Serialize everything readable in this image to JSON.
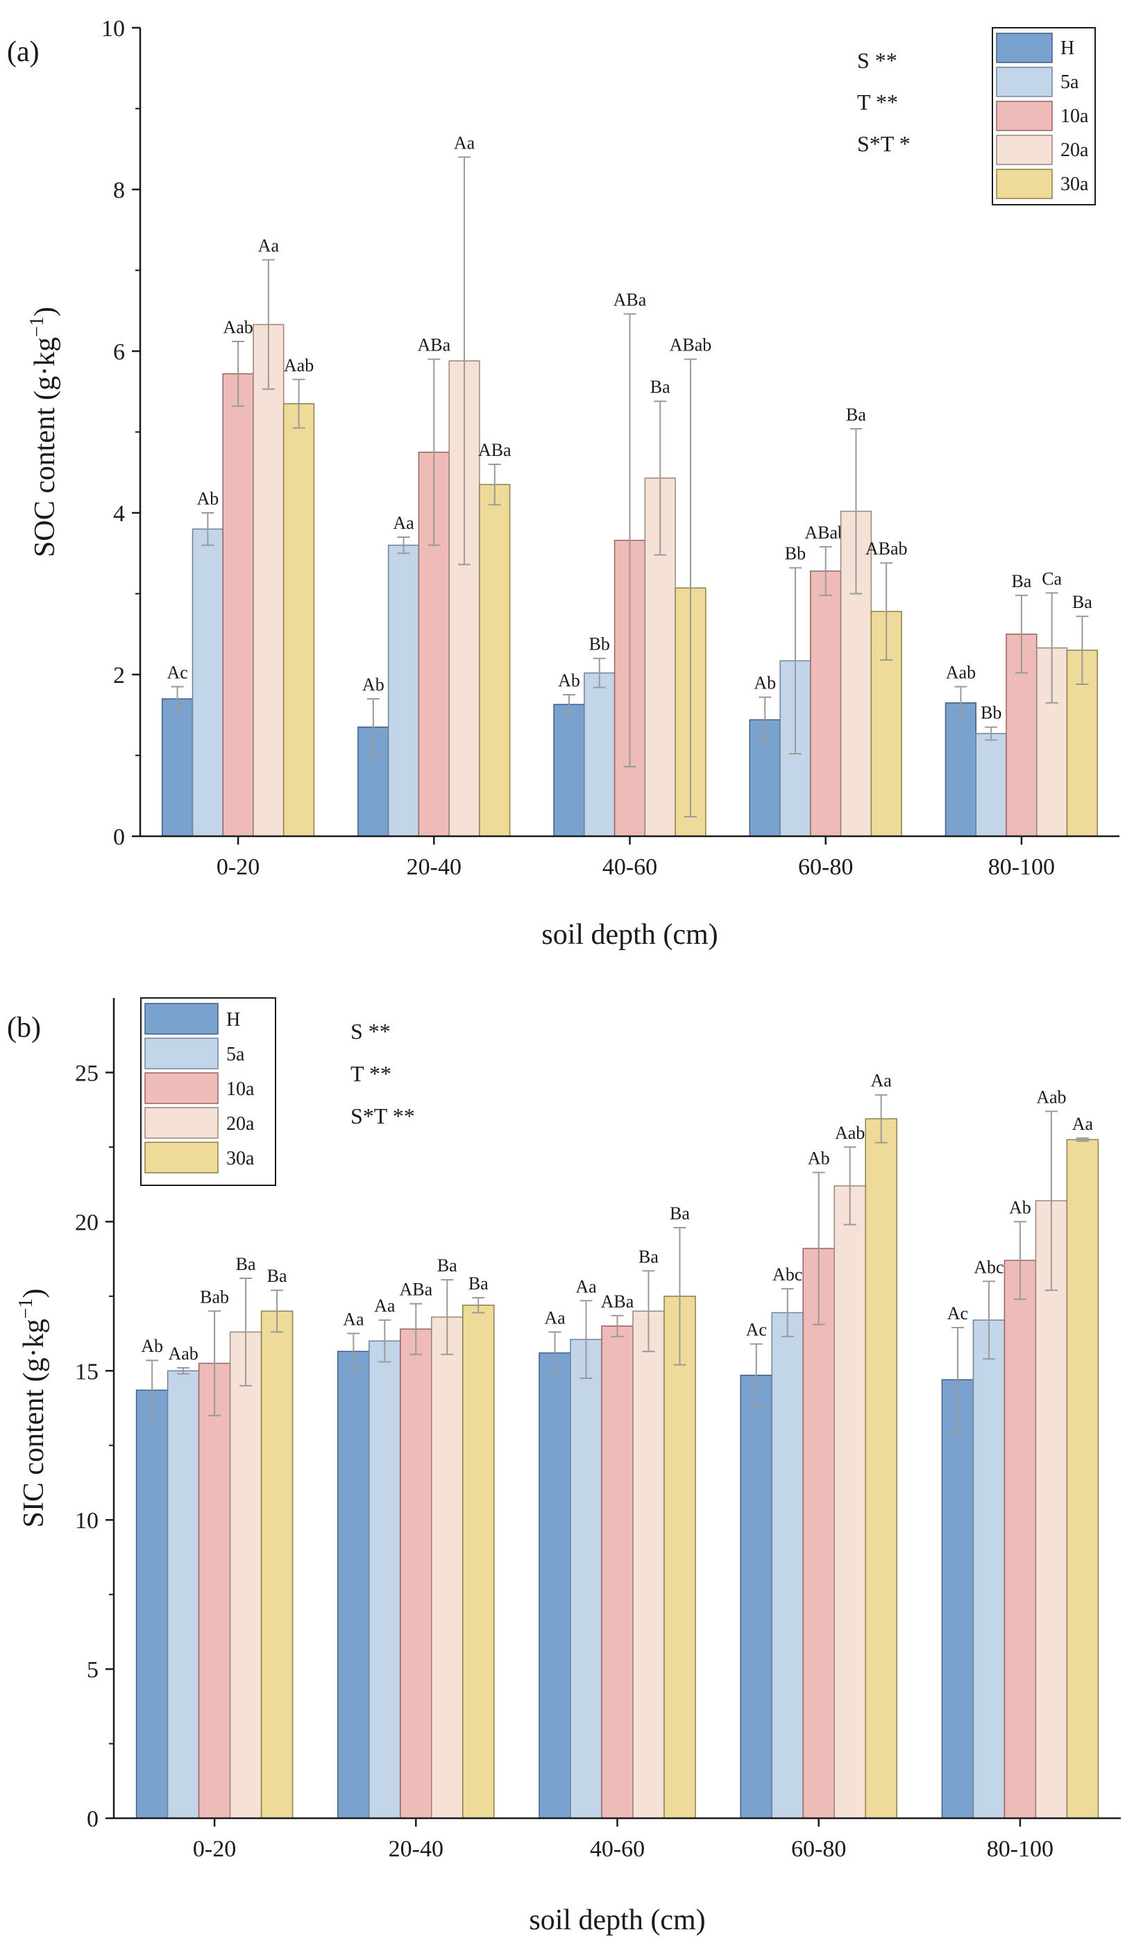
{
  "chart_data": [
    {
      "type": "bar",
      "panel": "(a)",
      "categories": [
        "0-20",
        "20-40",
        "40-60",
        "60-80",
        "80-100"
      ],
      "xlabel": "soil depth (cm)",
      "ylabel": "SOC content (g·kg",
      "ylabel_sup": "−1",
      "ylabel_close": ")",
      "ylim": [
        0,
        10
      ],
      "yticks": [
        "0",
        "2",
        "4",
        "6",
        "8",
        "10"
      ],
      "legend_position": "top-right",
      "significance": [
        "S **",
        "T **",
        "S*T *"
      ],
      "series": [
        {
          "name": "H",
          "values": [
            1.7,
            1.35,
            1.63,
            1.44,
            1.65
          ],
          "errors": [
            0.15,
            0.35,
            0.12,
            0.28,
            0.2
          ],
          "labels": [
            "Ac",
            "Ab",
            "Ab",
            "Ab",
            "Aab"
          ]
        },
        {
          "name": "5a",
          "values": [
            3.8,
            3.6,
            2.02,
            2.17,
            1.27
          ],
          "errors": [
            0.2,
            0.1,
            0.18,
            1.15,
            0.08
          ],
          "labels": [
            "Ab",
            "Aa",
            "Bb",
            "Bb",
            "Bb"
          ]
        },
        {
          "name": "10a",
          "values": [
            5.72,
            4.75,
            3.66,
            3.28,
            2.5
          ],
          "errors": [
            0.4,
            1.15,
            2.8,
            0.3,
            0.48
          ],
          "labels": [
            "Aab",
            "ABa",
            "ABa",
            "ABab",
            "Ba"
          ]
        },
        {
          "name": "20a",
          "values": [
            6.33,
            5.88,
            4.43,
            4.02,
            2.33
          ],
          "errors": [
            0.8,
            2.52,
            0.95,
            1.02,
            0.68
          ],
          "labels": [
            "Aa",
            "Aa",
            "Ba",
            "Ba",
            "Ca"
          ]
        },
        {
          "name": "30a",
          "values": [
            5.35,
            4.35,
            3.07,
            2.78,
            2.3
          ],
          "errors": [
            0.3,
            0.25,
            2.83,
            0.6,
            0.42
          ],
          "labels": [
            "Aab",
            "ABa",
            "ABab",
            "ABab",
            "Ba"
          ]
        }
      ]
    },
    {
      "type": "bar",
      "panel": "(b)",
      "categories": [
        "0-20",
        "20-40",
        "40-60",
        "60-80",
        "80-100"
      ],
      "xlabel": "soil depth (cm)",
      "ylabel": "SIC content (g·kg",
      "ylabel_sup": "−1",
      "ylabel_close": ")",
      "ylim": [
        0,
        27.5
      ],
      "yticks": [
        "0",
        "5",
        "10",
        "15",
        "20",
        "25"
      ],
      "legend_position": "top-left",
      "significance": [
        "S **",
        "T **",
        "S*T **"
      ],
      "series": [
        {
          "name": "H",
          "values": [
            14.35,
            15.65,
            15.6,
            14.85,
            14.7
          ],
          "errors": [
            1.0,
            0.6,
            0.7,
            1.05,
            1.75
          ],
          "labels": [
            "Ab",
            "Aa",
            "Aa",
            "Ac",
            "Ac"
          ]
        },
        {
          "name": "5a",
          "values": [
            15.0,
            16.0,
            16.05,
            16.95,
            16.7
          ],
          "errors": [
            0.1,
            0.7,
            1.3,
            0.8,
            1.3
          ],
          "labels": [
            "Aab",
            "Aa",
            "Aa",
            "Abc",
            "Abc"
          ]
        },
        {
          "name": "10a",
          "values": [
            15.25,
            16.4,
            16.5,
            19.1,
            18.7
          ],
          "errors": [
            1.75,
            0.85,
            0.35,
            2.55,
            1.3
          ],
          "labels": [
            "Bab",
            "ABa",
            "ABa",
            "Ab",
            "Ab"
          ]
        },
        {
          "name": "20a",
          "values": [
            16.3,
            16.8,
            17.0,
            21.2,
            20.7
          ],
          "errors": [
            1.8,
            1.25,
            1.35,
            1.3,
            3.0
          ],
          "labels": [
            "Ba",
            "Ba",
            "Ba",
            "Aab",
            "Aab"
          ]
        },
        {
          "name": "30a",
          "values": [
            17.0,
            17.2,
            17.5,
            23.45,
            22.75
          ],
          "errors": [
            0.7,
            0.25,
            2.3,
            0.8,
            0.05
          ],
          "labels": [
            "Ba",
            "Ba",
            "Ba",
            "Aa",
            "Aa"
          ]
        }
      ]
    }
  ],
  "colors": {
    "series_fill": [
      "#7aa2cf",
      "#c3d5e8",
      "#eebbb8",
      "#f5e1d6",
      "#eedb9a"
    ],
    "series_stroke": [
      "#3e5f83",
      "#6f849c",
      "#926462",
      "#9a867b",
      "#8d7f4c"
    ],
    "axis": "#1a1a1a",
    "errorbar": "#9a9a9a",
    "background": "#ffffff"
  }
}
